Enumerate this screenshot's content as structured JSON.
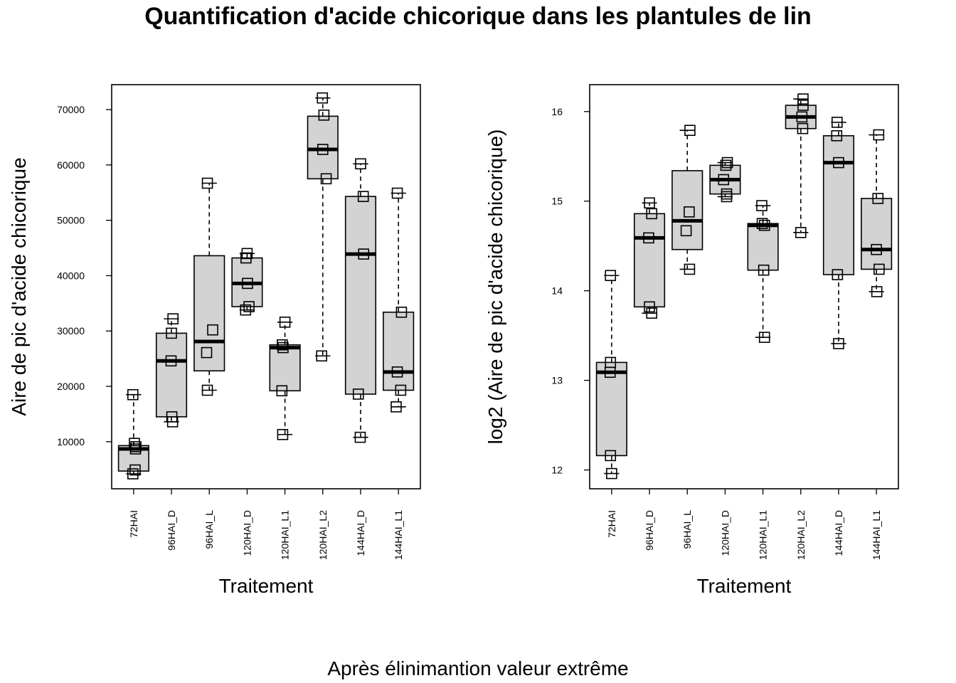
{
  "title": "Quantification d'acide chicorique dans les plantules de lin",
  "caption": "Après élinimantion valeur extrême",
  "chart_data": [
    {
      "type": "boxplot",
      "xlabel": "Traitement",
      "ylabel": "Aire de pic d'acide chicorique",
      "categories": [
        "72HAI",
        "96HAI_D",
        "96HAI_L",
        "120HAI_D",
        "120HAI_L1",
        "120HAI_L2",
        "144HAI_D",
        "144HAI_L1"
      ],
      "ylim": [
        1500,
        74500
      ],
      "yticks": [
        10000,
        20000,
        30000,
        40000,
        50000,
        60000,
        70000
      ],
      "ytick_labels": [
        "10000",
        "20000",
        "30000",
        "40000",
        "50000",
        "60000",
        "70000"
      ],
      "boxes": [
        {
          "min": 4200,
          "q1": 4700,
          "median": 8700,
          "q3": 9300,
          "max": 18500
        },
        {
          "min": 13600,
          "q1": 14500,
          "median": 24600,
          "q3": 29600,
          "max": 32200
        },
        {
          "min": 19300,
          "q1": 22800,
          "median": 28100,
          "q3": 43600,
          "max": 56700
        },
        {
          "min": 33800,
          "q1": 34400,
          "median": 38600,
          "q3": 43200,
          "max": 44000
        },
        {
          "min": 11300,
          "q1": 19200,
          "median": 27000,
          "q3": 27500,
          "max": 31600
        },
        {
          "min": 25500,
          "q1": 57500,
          "median": 62800,
          "q3": 68800,
          "max": 72100
        },
        {
          "min": 10800,
          "q1": 18600,
          "median": 43900,
          "q3": 54300,
          "max": 60200
        },
        {
          "min": 16300,
          "q1": 19300,
          "median": 22600,
          "q3": 33400,
          "max": 54900
        }
      ],
      "points": [
        [
          [
            -0.02,
            4200
          ],
          [
            0.04,
            4900
          ],
          [
            0.05,
            8700
          ],
          [
            0.06,
            9100
          ],
          [
            0.02,
            9700
          ],
          [
            -0.02,
            18500
          ]
        ],
        [
          [
            0.03,
            13600
          ],
          [
            0.01,
            14500
          ],
          [
            -0.01,
            24600
          ],
          [
            0.0,
            29600
          ],
          [
            0.04,
            32200
          ]
        ],
        [
          [
            -0.05,
            19300
          ],
          [
            -0.07,
            26100
          ],
          [
            0.09,
            30200
          ],
          [
            -0.05,
            56700
          ]
        ],
        [
          [
            -0.04,
            33800
          ],
          [
            0.05,
            34400
          ],
          [
            0.01,
            38600
          ],
          [
            -0.03,
            43200
          ],
          [
            0.0,
            44000
          ]
        ],
        [
          [
            -0.06,
            11300
          ],
          [
            -0.08,
            19200
          ],
          [
            -0.05,
            27000
          ],
          [
            -0.07,
            27500
          ],
          [
            0.0,
            31600
          ]
        ],
        [
          [
            -0.03,
            25500
          ],
          [
            0.09,
            57500
          ],
          [
            0.0,
            62800
          ],
          [
            0.03,
            69000
          ],
          [
            -0.01,
            72100
          ]
        ],
        [
          [
            -0.01,
            10800
          ],
          [
            -0.06,
            18600
          ],
          [
            0.08,
            43900
          ],
          [
            0.07,
            54300
          ],
          [
            0.0,
            60200
          ]
        ],
        [
          [
            -0.06,
            16300
          ],
          [
            0.06,
            19300
          ],
          [
            -0.03,
            22600
          ],
          [
            0.08,
            33400
          ],
          [
            -0.03,
            54900
          ]
        ]
      ]
    },
    {
      "type": "boxplot",
      "xlabel": "Traitement",
      "ylabel": "log2 (Aire de pic d'acide chicorique)",
      "categories": [
        "72HAI",
        "96HAI_D",
        "96HAI_L",
        "120HAI_D",
        "120HAI_L1",
        "120HAI_L2",
        "144HAI_D",
        "144HAI_L1"
      ],
      "ylim": [
        11.79,
        16.3
      ],
      "yticks": [
        12,
        13,
        14,
        15,
        16
      ],
      "ytick_labels": [
        "12",
        "13",
        "14",
        "15",
        "16"
      ],
      "boxes": [
        {
          "min": 11.96,
          "q1": 12.16,
          "median": 13.09,
          "q3": 13.2,
          "max": 14.17
        },
        {
          "min": 13.75,
          "q1": 13.82,
          "median": 14.59,
          "q3": 14.86,
          "max": 14.98
        },
        {
          "min": 14.24,
          "q1": 14.46,
          "median": 14.78,
          "q3": 15.34,
          "max": 15.79
        },
        {
          "min": 15.05,
          "q1": 15.08,
          "median": 15.24,
          "q3": 15.4,
          "max": 15.43
        },
        {
          "min": 13.48,
          "q1": 14.23,
          "median": 14.73,
          "q3": 14.75,
          "max": 14.95
        },
        {
          "min": 14.65,
          "q1": 15.81,
          "median": 15.94,
          "q3": 16.07,
          "max": 16.14
        },
        {
          "min": 13.41,
          "q1": 14.18,
          "median": 15.43,
          "q3": 15.73,
          "max": 15.88
        },
        {
          "min": 13.99,
          "q1": 14.24,
          "median": 14.46,
          "q3": 15.03,
          "max": 15.74
        }
      ],
      "points": [
        [
          [
            0.0,
            11.96
          ],
          [
            -0.03,
            12.16
          ],
          [
            -0.04,
            13.09
          ],
          [
            -0.03,
            13.2
          ],
          [
            -0.03,
            14.17
          ]
        ],
        [
          [
            0.06,
            13.75
          ],
          [
            0.0,
            13.82
          ],
          [
            -0.02,
            14.59
          ],
          [
            0.06,
            14.86
          ],
          [
            0.0,
            14.98
          ]
        ],
        [
          [
            0.06,
            14.24
          ],
          [
            -0.03,
            14.67
          ],
          [
            0.05,
            14.88
          ],
          [
            0.07,
            15.79
          ]
        ],
        [
          [
            0.04,
            15.05
          ],
          [
            0.04,
            15.08
          ],
          [
            -0.04,
            15.24
          ],
          [
            0.02,
            15.4
          ],
          [
            0.06,
            15.43
          ]
        ],
        [
          [
            0.04,
            13.48
          ],
          [
            0.02,
            14.23
          ],
          [
            0.04,
            14.73
          ],
          [
            -0.02,
            14.75
          ],
          [
            -0.03,
            14.95
          ]
        ],
        [
          [
            0.0,
            14.65
          ],
          [
            0.05,
            15.81
          ],
          [
            0.03,
            15.94
          ],
          [
            0.06,
            16.07
          ],
          [
            0.06,
            16.14
          ]
        ],
        [
          [
            0.0,
            13.41
          ],
          [
            -0.03,
            14.18
          ],
          [
            0.0,
            15.43
          ],
          [
            -0.05,
            15.73
          ],
          [
            -0.04,
            15.88
          ]
        ],
        [
          [
            0.01,
            13.99
          ],
          [
            0.07,
            14.24
          ],
          [
            0.0,
            14.46
          ],
          [
            0.04,
            15.03
          ],
          [
            0.06,
            15.74
          ]
        ]
      ]
    }
  ]
}
